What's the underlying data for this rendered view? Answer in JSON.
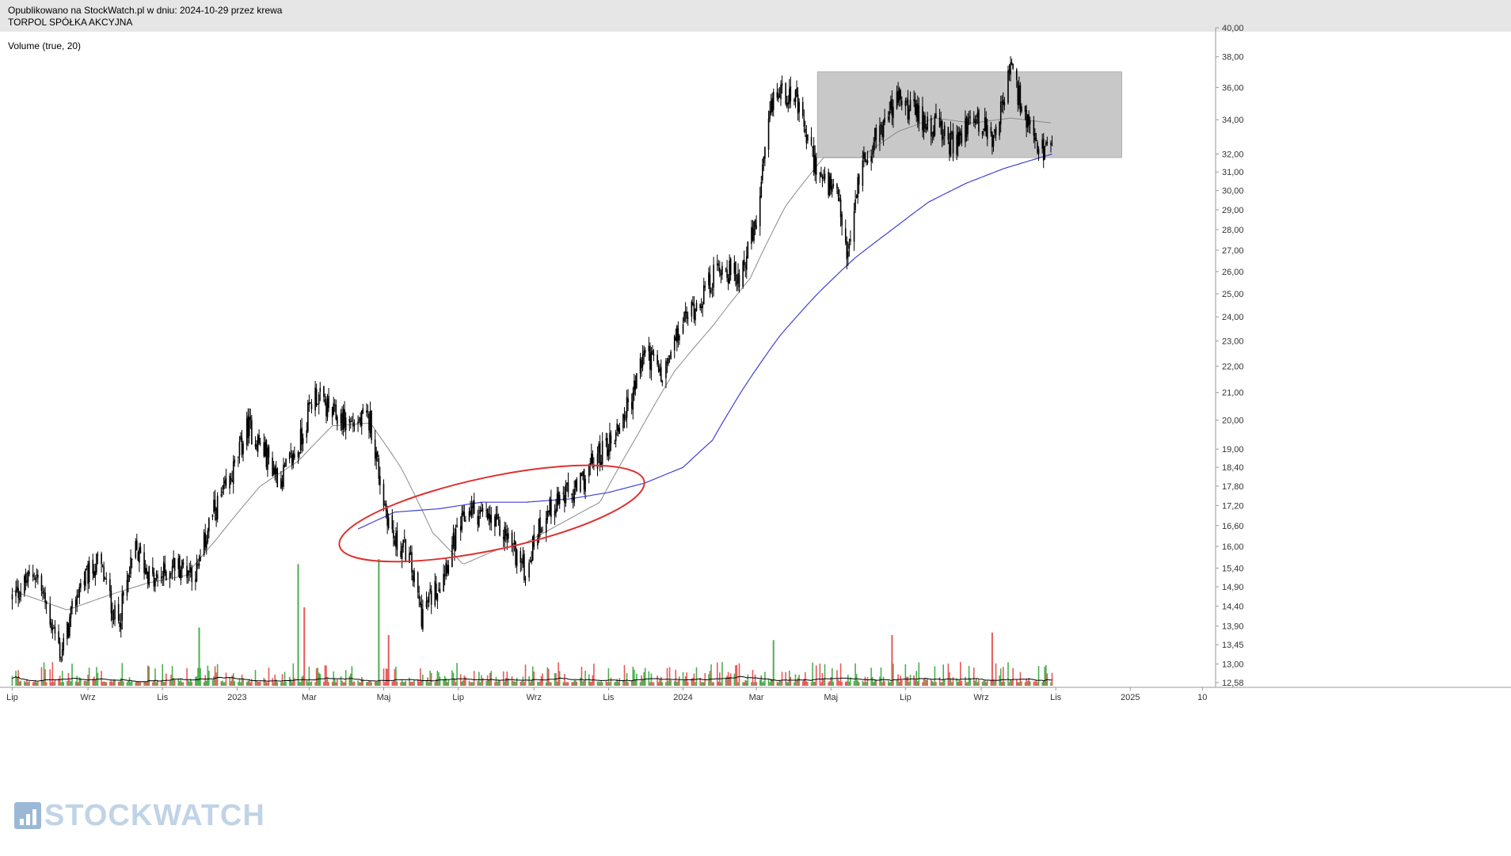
{
  "header": {
    "line1": "Opublikowano na StockWatch.pl w dniu: 2024-10-29 przez krewa",
    "line2": "TORPOL SPÓŁKA AKCYJNA"
  },
  "indicator_label": "Volume (true, 20)",
  "logo_text": "STOCKWATCH",
  "colors": {
    "price": "#000000",
    "ma_short": "#8a8a8a",
    "ma_long": "#4040d8",
    "ellipse": "#e03030",
    "box": "#c8c8c8",
    "volume_up": "#4caf50",
    "volume_down": "#e85a5a",
    "volume_ma": "#000000"
  },
  "chart_data": {
    "type": "candlestick",
    "scale": "log",
    "ylim": [
      12.3,
      40.0
    ],
    "y_ticks": [
      "40,00",
      "38,00",
      "36,00",
      "34,00",
      "32,00",
      "31,00",
      "30,00",
      "29,00",
      "28,00",
      "27,00",
      "26,00",
      "25,00",
      "24,00",
      "23,00",
      "22,00",
      "21,00",
      "20,00",
      "19,00",
      "18,40",
      "17,80",
      "17,20",
      "16,60",
      "16,00",
      "15,40",
      "14,90",
      "14,40",
      "13,90",
      "13,45",
      "13,00",
      "12,58"
    ],
    "x_ticks": [
      "Lip",
      "Wrz",
      "Lis",
      "2023",
      "Mar",
      "Maj",
      "Lip",
      "Wrz",
      "Lis",
      "2024",
      "Mar",
      "Maj",
      "Lip",
      "Wrz",
      "Lis",
      "2025",
      "10"
    ],
    "series": [
      {
        "name": "close",
        "points": [
          [
            "2022-07-01",
            14.6
          ],
          [
            "2022-07-20",
            15.3
          ],
          [
            "2022-08-10",
            13.2
          ],
          [
            "2022-08-25",
            14.9
          ],
          [
            "2022-09-10",
            15.6
          ],
          [
            "2022-09-25",
            13.9
          ],
          [
            "2022-10-10",
            15.9
          ],
          [
            "2022-10-25",
            15.0
          ],
          [
            "2022-11-10",
            15.5
          ],
          [
            "2022-11-30",
            15.3
          ],
          [
            "2022-12-10",
            16.8
          ],
          [
            "2022-12-25",
            17.8
          ],
          [
            "2023-01-10",
            19.8
          ],
          [
            "2023-01-25",
            18.8
          ],
          [
            "2023-02-05",
            18.0
          ],
          [
            "2023-02-20",
            19.0
          ],
          [
            "2023-03-05",
            21.0
          ],
          [
            "2023-03-20",
            20.2
          ],
          [
            "2023-04-05",
            19.9
          ],
          [
            "2023-04-20",
            20.0
          ],
          [
            "2023-04-30",
            17.5
          ],
          [
            "2023-05-10",
            16.1
          ],
          [
            "2023-05-20",
            15.9
          ],
          [
            "2023-06-01",
            14.2
          ],
          [
            "2023-06-15",
            15.0
          ],
          [
            "2023-06-30",
            16.3
          ],
          [
            "2023-07-10",
            17.1
          ],
          [
            "2023-07-25",
            16.8
          ],
          [
            "2023-08-10",
            16.3
          ],
          [
            "2023-08-25",
            15.3
          ],
          [
            "2023-09-05",
            16.6
          ],
          [
            "2023-09-20",
            17.4
          ],
          [
            "2023-10-05",
            17.6
          ],
          [
            "2023-10-20",
            18.6
          ],
          [
            "2023-11-05",
            19.4
          ],
          [
            "2023-11-20",
            20.8
          ],
          [
            "2023-12-01",
            22.7
          ],
          [
            "2023-12-15",
            21.5
          ],
          [
            "2024-01-01",
            23.8
          ],
          [
            "2024-01-15",
            24.8
          ],
          [
            "2024-02-01",
            26.3
          ],
          [
            "2024-02-15",
            25.7
          ],
          [
            "2024-03-01",
            28.2
          ],
          [
            "2024-03-15",
            35.5
          ],
          [
            "2024-03-30",
            35.8
          ],
          [
            "2024-04-15",
            32.0
          ],
          [
            "2024-04-25",
            30.4
          ],
          [
            "2024-05-05",
            29.8
          ],
          [
            "2024-05-15",
            26.6
          ],
          [
            "2024-05-25",
            31.3
          ],
          [
            "2024-06-10",
            33.4
          ],
          [
            "2024-06-25",
            35.3
          ],
          [
            "2024-07-10",
            34.3
          ],
          [
            "2024-07-25",
            33.6
          ],
          [
            "2024-08-10",
            32.4
          ],
          [
            "2024-08-25",
            34.3
          ],
          [
            "2024-09-10",
            33.0
          ],
          [
            "2024-09-20",
            35.3
          ],
          [
            "2024-09-25",
            37.3
          ],
          [
            "2024-10-05",
            34.5
          ],
          [
            "2024-10-15",
            32.4
          ],
          [
            "2024-10-29",
            32.0
          ]
        ]
      },
      {
        "name": "ma_short",
        "points": [
          [
            "2022-07-01",
            14.8
          ],
          [
            "2022-08-15",
            14.3
          ],
          [
            "2022-09-20",
            14.7
          ],
          [
            "2022-10-20",
            15.0
          ],
          [
            "2022-11-20",
            15.2
          ],
          [
            "2022-12-15",
            16.2
          ],
          [
            "2023-01-20",
            17.8
          ],
          [
            "2023-02-20",
            18.6
          ],
          [
            "2023-03-20",
            19.8
          ],
          [
            "2023-04-20",
            19.9
          ],
          [
            "2023-05-15",
            18.4
          ],
          [
            "2023-06-10",
            16.4
          ],
          [
            "2023-07-05",
            15.5
          ],
          [
            "2023-08-01",
            15.9
          ],
          [
            "2023-08-25",
            16.1
          ],
          [
            "2023-09-25",
            16.7
          ],
          [
            "2023-10-25",
            17.3
          ],
          [
            "2023-11-25",
            19.5
          ],
          [
            "2023-12-25",
            21.8
          ],
          [
            "2024-01-25",
            23.6
          ],
          [
            "2024-02-25",
            25.7
          ],
          [
            "2024-03-25",
            29.2
          ],
          [
            "2024-04-25",
            31.8
          ],
          [
            "2024-05-25",
            31.8
          ],
          [
            "2024-06-25",
            33.3
          ],
          [
            "2024-07-25",
            34.1
          ],
          [
            "2024-08-25",
            33.8
          ],
          [
            "2024-09-25",
            34.1
          ],
          [
            "2024-10-29",
            33.8
          ]
        ]
      },
      {
        "name": "ma_long",
        "points": [
          [
            "2023-04-10",
            16.5
          ],
          [
            "2023-05-10",
            17.0
          ],
          [
            "2023-06-15",
            17.1
          ],
          [
            "2023-07-20",
            17.3
          ],
          [
            "2023-08-25",
            17.3
          ],
          [
            "2023-09-30",
            17.4
          ],
          [
            "2023-11-01",
            17.6
          ],
          [
            "2023-12-01",
            17.9
          ],
          [
            "2024-01-01",
            18.4
          ],
          [
            "2024-01-25",
            19.3
          ],
          [
            "2024-02-20",
            21.2
          ],
          [
            "2024-03-20",
            23.2
          ],
          [
            "2024-04-20",
            25.0
          ],
          [
            "2024-05-20",
            26.6
          ],
          [
            "2024-06-20",
            28.0
          ],
          [
            "2024-07-20",
            29.4
          ],
          [
            "2024-08-20",
            30.4
          ],
          [
            "2024-09-20",
            31.2
          ],
          [
            "2024-10-29",
            32.0
          ]
        ]
      }
    ],
    "annotations": {
      "ellipse": {
        "from": "2023-04-05",
        "to": "2023-11-20",
        "around": [
          15.3,
          18.8
        ]
      },
      "range_box": {
        "from": "2024-04-20",
        "to": "2024-12-25",
        "low": 31.8,
        "high": 37.0
      }
    },
    "volume_panel": true
  }
}
